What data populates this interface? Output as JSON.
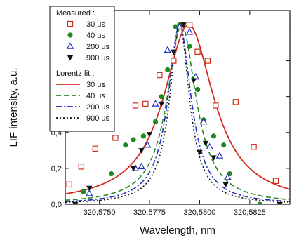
{
  "chart_data": {
    "type": "scatter",
    "xlabel": "Wavelength, nm",
    "ylabel": "LIF intensity, a.u.",
    "xlim": [
      320.5733,
      320.5845
    ],
    "ylim": [
      0.0,
      1.08
    ],
    "xticks": [
      320.575,
      320.5775,
      320.58,
      320.5825
    ],
    "xtick_labels": [
      "320,5750",
      "320,5775",
      "320,5800",
      "320,5825"
    ],
    "yticks": [
      0.0,
      0.2,
      0.4,
      0.6,
      0.8,
      1.0
    ],
    "ytick_labels": [
      "0,0",
      "0,2",
      "0,4",
      "0,6",
      "0,8",
      "1,0"
    ],
    "legend_placement": "top-left",
    "legend_headers": [
      "Measured :",
      "Lorentz fit :"
    ],
    "colors": {
      "30us": "#d42a20",
      "40us": "#1f8a1f",
      "200us": "#2230c8",
      "900us": "#111111"
    },
    "measured": [
      {
        "name": "30 us",
        "marker": "open-square",
        "color": "#d42a20",
        "x": [
          320.5735,
          320.5741,
          320.5748,
          320.5758,
          320.5768,
          320.5773,
          320.578,
          320.5787,
          320.5791,
          320.5795,
          320.5799,
          320.5804,
          320.5808,
          320.5818,
          320.5827,
          320.5838
        ],
        "y": [
          0.11,
          0.21,
          0.31,
          0.37,
          0.55,
          0.56,
          0.72,
          0.8,
          1.0,
          1.0,
          0.85,
          0.8,
          0.55,
          0.57,
          0.32,
          0.13
        ]
      },
      {
        "name": "40 us",
        "marker": "filled-circle",
        "color": "#1f8a1f",
        "x": [
          320.5742,
          320.5756,
          320.5763,
          320.5767,
          320.5772,
          320.5778,
          320.5781,
          320.5784,
          320.5788,
          320.579,
          320.5795,
          320.5799,
          320.5802,
          320.5807,
          320.5812,
          320.5815,
          320.583
        ],
        "y": [
          0.07,
          0.17,
          0.33,
          0.36,
          0.38,
          0.46,
          0.6,
          0.75,
          0.99,
          1.0,
          0.88,
          0.64,
          0.47,
          0.38,
          0.33,
          0.17,
          0.0
        ]
      },
      {
        "name": "200 us",
        "marker": "open-triangle-up",
        "color": "#2230c8",
        "x": [
          320.5745,
          320.5768,
          320.5771,
          320.5774,
          320.5778,
          320.5784,
          320.579,
          320.5795,
          320.5798,
          320.5802,
          320.5805,
          320.581,
          320.5814
        ],
        "y": [
          0.06,
          0.2,
          0.21,
          0.33,
          0.56,
          0.86,
          0.99,
          0.96,
          0.71,
          0.46,
          0.32,
          0.27,
          0.15
        ]
      },
      {
        "name": "900 us",
        "marker": "filled-triangle-down",
        "color": "#111111",
        "x": [
          320.5738,
          320.5745,
          320.5767,
          320.5771,
          320.5775,
          320.5781,
          320.5787,
          320.5792,
          320.5797,
          320.58,
          320.5803,
          320.5807,
          320.5813,
          320.584
        ],
        "y": [
          0.0,
          0.09,
          0.2,
          0.3,
          0.39,
          0.56,
          0.85,
          1.0,
          0.69,
          0.29,
          0.34,
          0.26,
          0.11,
          0.0
        ]
      }
    ],
    "fits": [
      {
        "name": "30 us",
        "style": "solid",
        "color": "#d42a20",
        "center": 320.57945,
        "fwhm": 0.00305
      },
      {
        "name": "40 us",
        "style": "dashed",
        "color": "#1f8a1f",
        "center": 320.5791,
        "fwhm": 0.00175
      },
      {
        "name": "200 us",
        "style": "dash-dot",
        "color": "#2230c8",
        "center": 320.579,
        "fwhm": 0.0014
      },
      {
        "name": "900 us",
        "style": "dotted",
        "color": "#111111",
        "center": 320.579,
        "fwhm": 0.0012
      }
    ]
  }
}
